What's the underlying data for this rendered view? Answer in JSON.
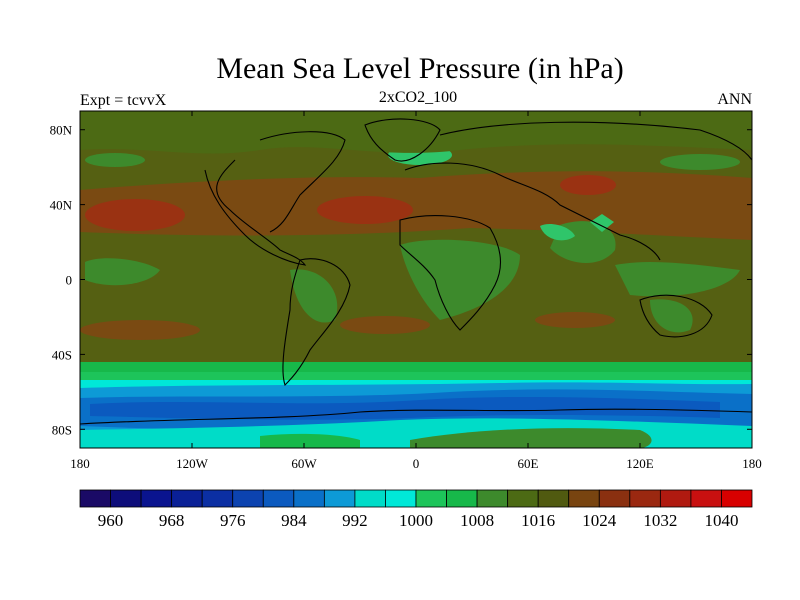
{
  "title": "Mean Sea Level Pressure (in hPa)",
  "subtitle_left": "Expt = tcvvX",
  "subtitle_center": "2xCO2_100",
  "subtitle_right": "ANN",
  "x_ticks": [
    "180",
    "120W",
    "60W",
    "0",
    "60E",
    "120E",
    "180"
  ],
  "y_ticks": [
    "80N",
    "40N",
    "0",
    "40S",
    "80S"
  ],
  "colorbar": {
    "labels": [
      "960",
      "968",
      "976",
      "984",
      "992",
      "1000",
      "1008",
      "1016",
      "1024",
      "1032",
      "1040"
    ],
    "colors": [
      "#1a0a66",
      "#0d0d7a",
      "#0a148f",
      "#0a2096",
      "#0b2fa3",
      "#0c43b0",
      "#0b5abf",
      "#0a70c8",
      "#0d9ad6",
      "#00dcc8",
      "#00e8d8",
      "#1dc45a",
      "#17b84a",
      "#3d8a2c",
      "#4c6a14",
      "#505a10",
      "#784410",
      "#8a3010",
      "#9a2810",
      "#b01a10",
      "#c81010",
      "#d80000"
    ]
  },
  "map": {
    "ocean_color": "#556012",
    "features": [
      {
        "kind": "high-pressure-band",
        "lat_range": [
          20,
          45
        ],
        "color": "#7a4a12"
      },
      {
        "kind": "subtropical-high",
        "region": "north-pacific",
        "color": "#9a3212"
      },
      {
        "kind": "subtropical-high",
        "region": "north-atlantic",
        "color": "#9a3212"
      },
      {
        "kind": "tibetan-high",
        "region": "central-asia",
        "color": "#9a3212"
      },
      {
        "kind": "low-pressure",
        "region": "greenland",
        "color": "#2fc56a"
      },
      {
        "kind": "low-pressure",
        "region": "africa",
        "color": "#3d8a2c"
      },
      {
        "kind": "southern-ocean-low-band",
        "lat_range": [
          -75,
          -45
        ],
        "colors": [
          "#1dc45a",
          "#00e8d8",
          "#0d9ad6",
          "#0a70c8",
          "#0b5abf"
        ]
      },
      {
        "kind": "antarctic-plateau",
        "color": "#3d8a2c"
      }
    ]
  }
}
